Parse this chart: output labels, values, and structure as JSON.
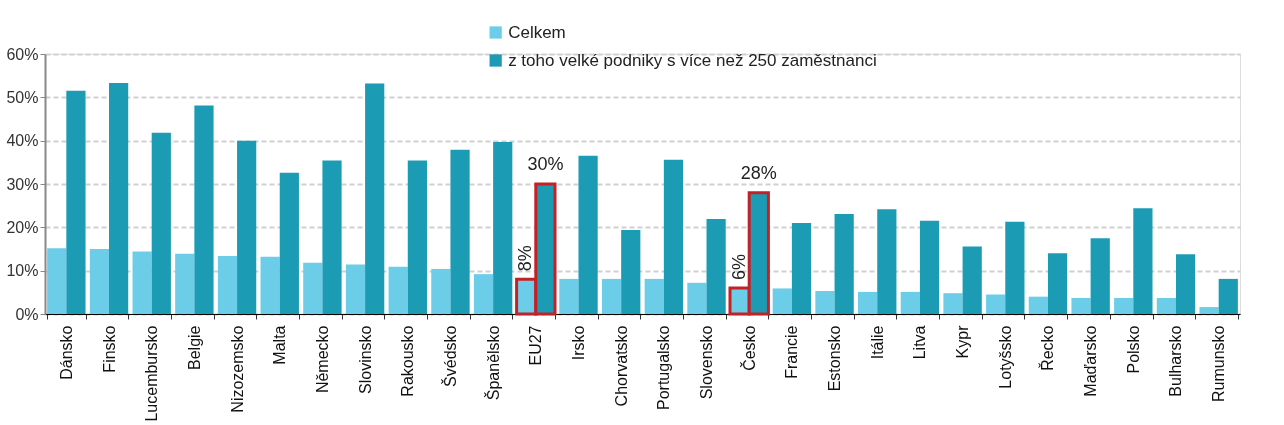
{
  "chart_data": {
    "type": "bar",
    "categories": [
      "Dánsko",
      "Finsko",
      "Lucembursko",
      "Belgie",
      "Nizozemsko",
      "Malta",
      "Německo",
      "Slovinsko",
      "Rakousko",
      "Švédsko",
      "Španělsko",
      "EU27",
      "Irsko",
      "Chorvatsko",
      "Portugalsko",
      "Slovensko",
      "Česko",
      "Francie",
      "Estonsko",
      "Itálie",
      "Litva",
      "Kypr",
      "Lotyšsko",
      "Řecko",
      "Maďarsko",
      "Polsko",
      "Bulharsko",
      "Rumunsko"
    ],
    "series": [
      {
        "name": "Celkem",
        "color": "#6ccde9",
        "values": [
          15.2,
          15.0,
          14.4,
          13.9,
          13.4,
          13.2,
          11.8,
          11.4,
          10.9,
          10.4,
          9.2,
          8,
          8.1,
          8.1,
          8.1,
          7.2,
          6,
          5.9,
          5.3,
          5.1,
          5.1,
          4.8,
          4.5,
          4.0,
          3.7,
          3.7,
          3.7,
          1.6
        ],
        "value_labels": [
          null,
          null,
          null,
          null,
          null,
          null,
          null,
          null,
          null,
          null,
          null,
          "8%",
          null,
          null,
          null,
          null,
          "6%",
          null,
          null,
          null,
          null,
          null,
          null,
          null,
          null,
          null,
          null,
          null
        ]
      },
      {
        "name": "z toho velké podniky s více než 250 zaměstnanci",
        "color": "#1c9bb4",
        "values": [
          51.5,
          53.3,
          41.8,
          48.1,
          40.0,
          32.6,
          35.4,
          53.2,
          35.4,
          37.9,
          39.7,
          30,
          36.5,
          19.4,
          35.6,
          21.9,
          28,
          21.0,
          23.1,
          24.2,
          21.5,
          15.6,
          21.3,
          14.0,
          17.5,
          24.4,
          13.8,
          8.1
        ],
        "value_labels": [
          null,
          null,
          null,
          null,
          null,
          null,
          null,
          null,
          null,
          null,
          null,
          "30%",
          null,
          null,
          null,
          null,
          "28%",
          null,
          null,
          null,
          null,
          null,
          null,
          null,
          null,
          null,
          null,
          null
        ]
      }
    ],
    "ylim": [
      0,
      60
    ],
    "yticks": [
      {
        "value": 0,
        "label": "0%"
      },
      {
        "value": 10,
        "label": "10%"
      },
      {
        "value": 20,
        "label": "20%"
      },
      {
        "value": 30,
        "label": "30%"
      },
      {
        "value": 40,
        "label": "40%"
      },
      {
        "value": 50,
        "label": "50%"
      },
      {
        "value": 60,
        "label": "60%"
      }
    ],
    "grid": "y",
    "legend": "top"
  }
}
